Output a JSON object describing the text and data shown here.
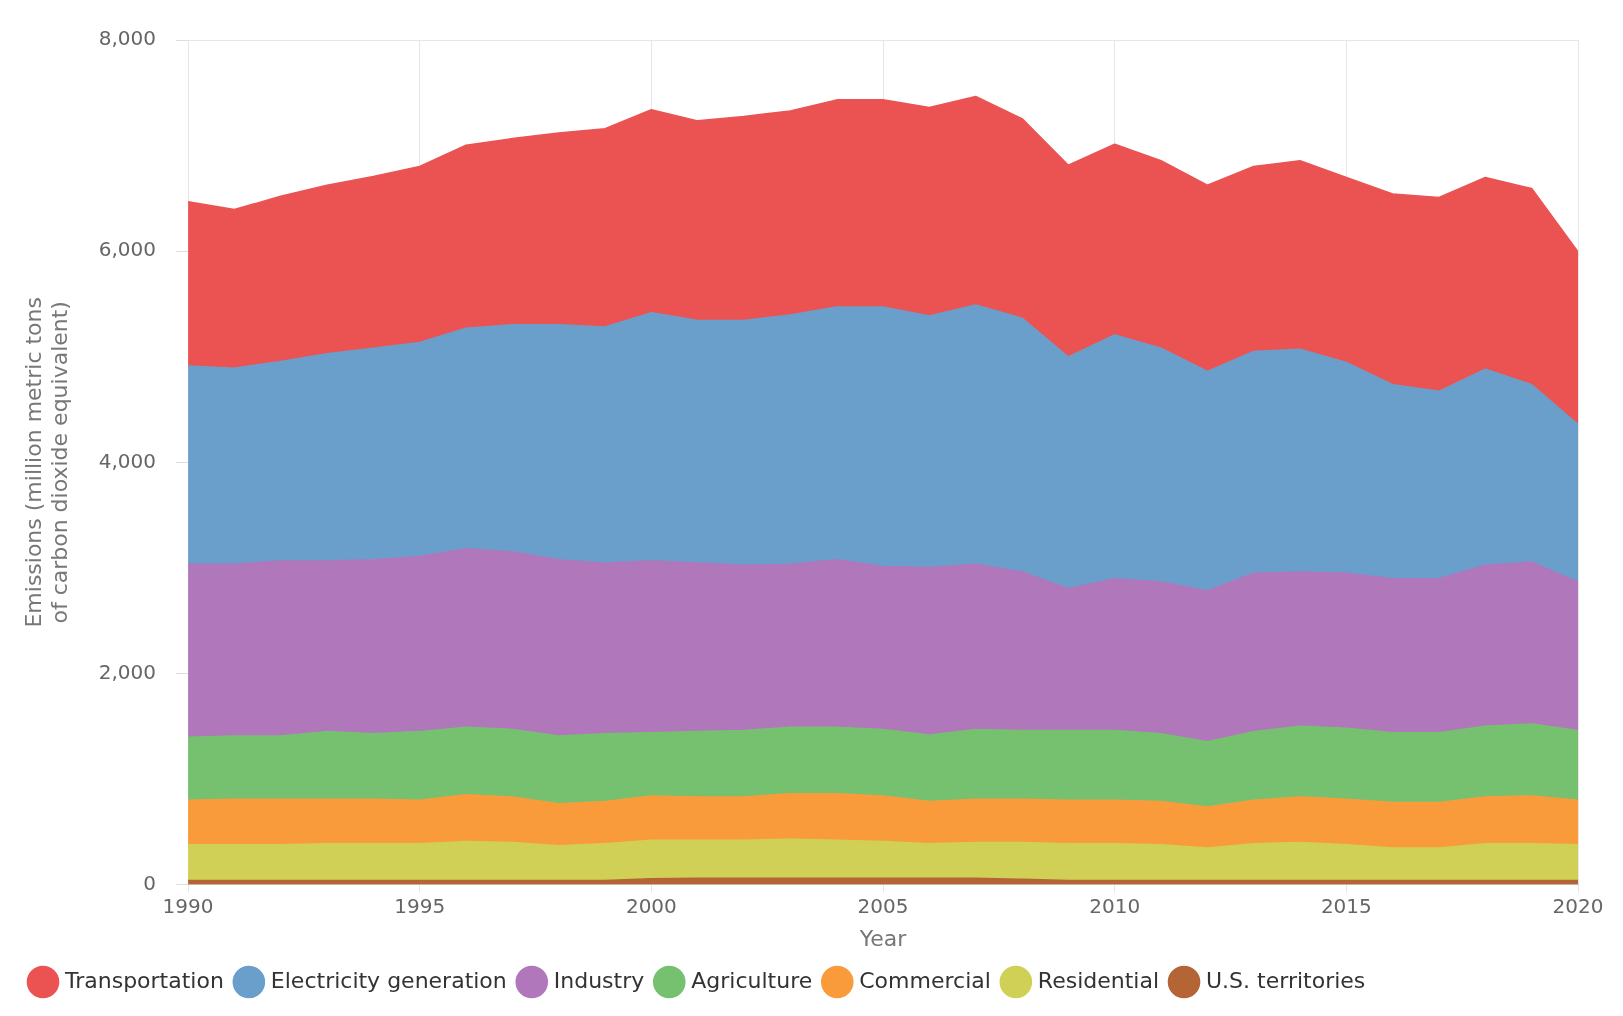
{
  "chart_data": {
    "type": "area",
    "stacked": true,
    "xlabel": "Year",
    "ylabel": "Emissions (million metric tons of carbon dioxide equivalent)",
    "x": [
      1990,
      1991,
      1992,
      1993,
      1994,
      1995,
      1996,
      1997,
      1998,
      1999,
      2000,
      2001,
      2002,
      2003,
      2004,
      2005,
      2006,
      2007,
      2008,
      2009,
      2010,
      2011,
      2012,
      2013,
      2014,
      2015,
      2016,
      2017,
      2018,
      2019,
      2020
    ],
    "xlim": [
      1990,
      2020
    ],
    "xticks": [
      1990,
      1995,
      2000,
      2005,
      2010,
      2015,
      2020
    ],
    "ylim": [
      0,
      8000
    ],
    "yticks": [
      0,
      {
        "value": 2000,
        "label": "2,000"
      },
      {
        "value": 4000,
        "label": "4,000"
      },
      {
        "value": 6000,
        "label": "6,000"
      },
      {
        "value": 8000,
        "label": "8,000"
      }
    ],
    "grid": "x",
    "legend": "bottom",
    "series": [
      {
        "name": "U.S. territories",
        "color": "#b46435",
        "values": [
          40,
          40,
          40,
          40,
          40,
          40,
          40,
          40,
          40,
          40,
          55,
          60,
          60,
          60,
          60,
          60,
          60,
          60,
          50,
          40,
          40,
          40,
          40,
          40,
          40,
          40,
          40,
          40,
          40,
          40,
          40
        ]
      },
      {
        "name": "Residential",
        "color": "#cfd055",
        "values": [
          338,
          338,
          338,
          348,
          348,
          348,
          369,
          359,
          327,
          348,
          365,
          360,
          360,
          370,
          360,
          349,
          328,
          339,
          349,
          348,
          348,
          338,
          306,
          348,
          359,
          338,
          306,
          306,
          348,
          348,
          338
        ]
      },
      {
        "name": "Commercial",
        "color": "#fa9b3b",
        "values": [
          420,
          430,
          430,
          420,
          420,
          410,
          441,
          430,
          399,
          399,
          420,
          409,
          409,
          431,
          441,
          431,
          399,
          409,
          409,
          410,
          410,
          409,
          389,
          410,
          430,
          430,
          431,
          431,
          441,
          452,
          420
        ]
      },
      {
        "name": "Agriculture",
        "color": "#75c16f",
        "values": [
          598,
          599,
          599,
          641,
          620,
          651,
          641,
          641,
          641,
          641,
          598,
          620,
          630,
          630,
          630,
          630,
          630,
          662,
          651,
          661,
          661,
          641,
          619,
          651,
          672,
          672,
          661,
          661,
          672,
          682,
          661
        ]
      },
      {
        "name": "Industry",
        "color": "#b077bb",
        "values": [
          1638,
          1627,
          1659,
          1617,
          1648,
          1659,
          1690,
          1680,
          1669,
          1617,
          1628,
          1596,
          1565,
          1543,
          1585,
          1543,
          1586,
          1564,
          1502,
          1344,
          1439,
          1438,
          1428,
          1501,
          1460,
          1470,
          1460,
          1460,
          1523,
          1533,
          1407
        ]
      },
      {
        "name": "Electricity generation",
        "color": "#6a9ecb",
        "values": [
          1879,
          1858,
          1889,
          1963,
          2005,
          2026,
          2089,
          2152,
          2226,
          2236,
          2351,
          2299,
          2320,
          2362,
          2394,
          2457,
          2383,
          2457,
          2404,
          2194,
          2309,
          2215,
          2079,
          2100,
          2110,
          1995,
          1837,
          1774,
          1858,
          1680,
          1491
        ]
      },
      {
        "name": "Transportation",
        "color": "#eb5353",
        "values": [
          1554,
          1502,
          1565,
          1596,
          1627,
          1669,
          1733,
          1764,
          1816,
          1879,
          1922,
          1890,
          1932,
          1932,
          1963,
          1963,
          1974,
          1974,
          1890,
          1817,
          1806,
          1775,
          1764,
          1753,
          1785,
          1753,
          1806,
          1837,
          1816,
          1858,
          1638
        ]
      }
    ]
  }
}
